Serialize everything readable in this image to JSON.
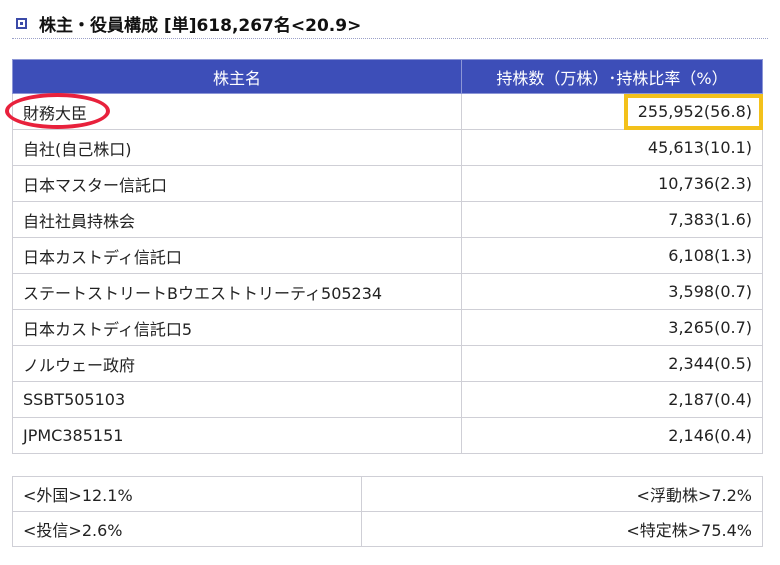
{
  "header": {
    "title": "株主・役員構成 [単]618,267名<20.9>"
  },
  "table": {
    "headers": {
      "name": "株主名",
      "shares": "持株数（万株）･持株比率（%）"
    },
    "rows": [
      {
        "name": "財務大臣",
        "value": "255,952(56.8)"
      },
      {
        "name": "自社(自己株口)",
        "value": "45,613(10.1)"
      },
      {
        "name": "日本マスター信託口",
        "value": "10,736(2.3)"
      },
      {
        "name": "自社社員持株会",
        "value": "7,383(1.6)"
      },
      {
        "name": "日本カストディ信託口",
        "value": "6,108(1.3)"
      },
      {
        "name": "ステートストリートBウエストトリーティ505234",
        "value": "3,598(0.7)"
      },
      {
        "name": "日本カストディ信託口5",
        "value": "3,265(0.7)"
      },
      {
        "name": "ノルウェー政府",
        "value": "2,344(0.5)"
      },
      {
        "name": "SSBT505103",
        "value": "2,187(0.4)"
      },
      {
        "name": "JPMC385151",
        "value": "2,146(0.4)"
      }
    ]
  },
  "summary": {
    "foreign": "<外国>12.1%",
    "floating": "<浮動株>7.2%",
    "trust": "<投信>2.6%",
    "specific": "<特定株>75.4%"
  },
  "colors": {
    "header_bg": "#3d4eb8",
    "highlight_oval": "#e8213c",
    "highlight_box": "#f3c11b"
  }
}
